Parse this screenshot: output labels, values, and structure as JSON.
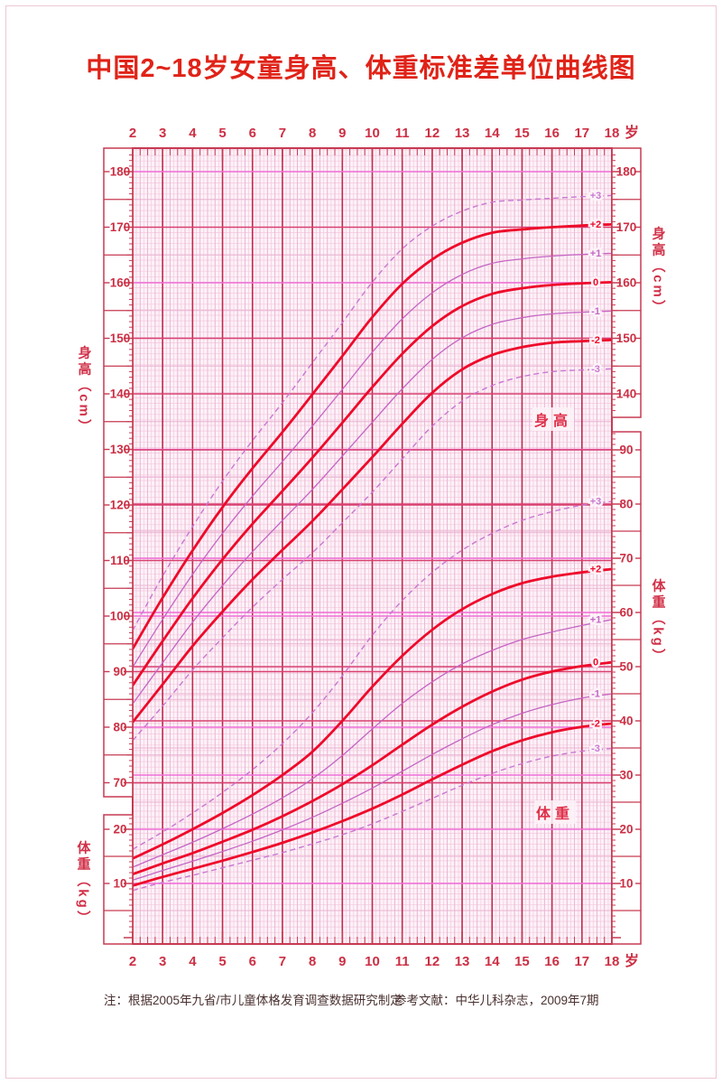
{
  "page": {
    "title": "中国2~18岁女童身高、体重标准差单位曲线图",
    "note_left": "注：根据2005年九省/市儿童体格发育调查数据研究制定",
    "note_right": "参考文献：中华儿科杂志，2009年7期",
    "age_unit_label": "岁"
  },
  "axis_titles": {
    "left_height": "身高（cm）",
    "left_weight": "体重（kg）",
    "right_height": "身高（cm）",
    "right_weight": "体重（kg）"
  },
  "plot_annotations": {
    "height_label": "身高",
    "weight_label": "体重"
  },
  "colors": {
    "title_red": "#e02318",
    "axis_red": "#c73a52",
    "label_red": "#cc2f44",
    "curve_red": "#ee0a2a",
    "curve_thin_violet": "#c465c4",
    "curve_dashed_violet": "#c878d2",
    "grid_major_red": "#d84070",
    "grid_major_magenta": "#ef6fd8",
    "grid_mid": "#eab4d2",
    "grid_fine": "#f3c9de",
    "frame": "#c73a52",
    "plot_bg": "#fdf2f8",
    "note_dark": "#4a3030"
  },
  "chart_data": {
    "type": "line",
    "title": "中国2~18岁女童身高、体重标准差单位曲线图",
    "x_axis": {
      "label": "岁",
      "ticks": [
        2,
        3,
        4,
        5,
        6,
        7,
        8,
        9,
        10,
        11,
        12,
        13,
        14,
        15,
        16,
        17,
        18
      ],
      "range": [
        2,
        18
      ]
    },
    "sd_unit_labels": [
      "+3",
      "+2",
      "+1",
      "0",
      "-1",
      "-2",
      "-3"
    ],
    "ages": [
      2,
      3,
      4,
      5,
      6,
      7,
      8,
      9,
      10,
      11,
      12,
      13,
      14,
      15,
      16,
      17,
      18
    ],
    "height_cm": {
      "unit": "cm",
      "tick_values_left": [
        180,
        170,
        160,
        150,
        140,
        130,
        120,
        110,
        100,
        90,
        80,
        70
      ],
      "tick_values_right": [
        180,
        170,
        160,
        150,
        140
      ],
      "series": {
        "+3": [
          97.4,
          107.2,
          116.1,
          124.3,
          131.6,
          138.4,
          145.6,
          152.8,
          160.1,
          166.1,
          170.2,
          172.9,
          174.5,
          174.9,
          175.2,
          175.5,
          175.7
        ],
        "+2": [
          94.1,
          103.3,
          111.8,
          119.6,
          126.6,
          133.1,
          139.9,
          146.8,
          153.8,
          159.8,
          164.2,
          167.2,
          169.0,
          169.6,
          170.0,
          170.3,
          170.5
        ],
        "+1": [
          90.8,
          99.4,
          107.5,
          114.9,
          121.6,
          127.8,
          134.2,
          140.8,
          147.5,
          153.5,
          158.2,
          161.5,
          163.5,
          164.3,
          164.8,
          165.1,
          165.3
        ],
        "0": [
          87.5,
          95.5,
          103.2,
          110.2,
          116.6,
          122.5,
          128.5,
          134.8,
          141.2,
          147.2,
          152.2,
          155.8,
          158.0,
          159.0,
          159.6,
          159.9,
          160.1
        ],
        "-1": [
          84.2,
          91.6,
          98.9,
          105.5,
          111.6,
          117.2,
          122.8,
          128.8,
          134.9,
          140.9,
          146.2,
          150.1,
          152.5,
          153.7,
          154.4,
          154.7,
          154.9
        ],
        "-2": [
          80.9,
          87.7,
          94.6,
          100.8,
          106.6,
          111.9,
          117.1,
          122.8,
          128.6,
          134.6,
          140.2,
          144.4,
          147.0,
          148.4,
          149.2,
          149.5,
          149.7
        ],
        "-3": [
          77.6,
          83.8,
          90.3,
          96.1,
          101.6,
          106.6,
          111.4,
          116.8,
          122.3,
          128.3,
          134.2,
          138.7,
          141.5,
          143.1,
          144.0,
          144.3,
          144.5
        ]
      }
    },
    "weight_kg": {
      "unit": "kg",
      "tick_values_left": [
        20,
        10
      ],
      "tick_values_right": [
        90,
        80,
        70,
        60,
        50,
        40,
        30,
        20,
        10
      ],
      "series": {
        "+3": [
          16.3,
          19.5,
          23.0,
          26.8,
          31.0,
          35.8,
          41.5,
          48.3,
          55.8,
          62.2,
          67.4,
          71.5,
          74.6,
          77.0,
          78.6,
          79.8,
          80.5
        ],
        "+2": [
          14.6,
          17.2,
          20.0,
          23.0,
          26.3,
          30.0,
          34.3,
          40.0,
          46.3,
          52.0,
          56.8,
          60.6,
          63.4,
          65.4,
          66.6,
          67.4,
          68.0
        ],
        "+1": [
          13.0,
          15.3,
          17.6,
          20.1,
          22.8,
          25.8,
          29.3,
          33.6,
          38.5,
          43.2,
          47.2,
          50.5,
          53.0,
          55.0,
          56.4,
          57.6,
          58.7
        ],
        "0": [
          11.7,
          13.7,
          15.6,
          17.7,
          19.9,
          22.4,
          25.2,
          28.3,
          31.8,
          35.6,
          39.3,
          42.6,
          45.4,
          47.6,
          49.1,
          50.1,
          50.8
        ],
        "-1": [
          10.6,
          12.4,
          14.1,
          15.9,
          17.8,
          19.9,
          22.2,
          24.8,
          27.6,
          30.7,
          33.8,
          36.7,
          39.3,
          41.4,
          43.0,
          44.2,
          45.0
        ],
        "-2": [
          9.6,
          11.2,
          12.7,
          14.2,
          15.8,
          17.5,
          19.4,
          21.5,
          23.8,
          26.4,
          29.2,
          31.9,
          34.4,
          36.4,
          37.9,
          38.9,
          39.5
        ],
        "-3": [
          8.7,
          10.2,
          11.5,
          12.9,
          14.3,
          15.7,
          17.3,
          19.0,
          21.0,
          23.3,
          25.7,
          28.1,
          30.3,
          32.1,
          33.5,
          34.4,
          34.9
        ]
      }
    },
    "grid": {
      "magenta_height_lines": [
        180,
        160,
        130,
        100,
        80
      ],
      "magenta_weight_lines": [
        70,
        60,
        30,
        20,
        10
      ]
    },
    "legend_position": "curve-end-labels-right",
    "grid_on": true
  }
}
